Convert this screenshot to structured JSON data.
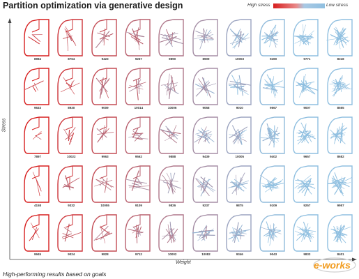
{
  "title": "Partition optimization via generative design",
  "legend": {
    "high_label": "High stress",
    "low_label": "Low stress",
    "high_color": "#d71e1e",
    "low_color": "#8fbfe0"
  },
  "axes": {
    "y_label": "Stress",
    "x_label": "Weight"
  },
  "caption": "High-performing results based on goals",
  "watermark": {
    "brand_text": "e-works",
    "brand_color": "#f29b1d"
  },
  "grid": {
    "rows": [
      [
        "8984",
        "8764",
        "9423",
        "9257",
        "9890",
        "8909",
        "10003",
        "9490",
        "9771",
        "8318"
      ],
      [
        "9633",
        "8930",
        "9009",
        "10014",
        "10006",
        "9058",
        "9010",
        "9567",
        "9007",
        "8555"
      ],
      [
        "7897",
        "10022",
        "9963",
        "9562",
        "9888",
        "9439",
        "10005",
        "9402",
        "9657",
        "8682"
      ],
      [
        "4158",
        "9332",
        "10055",
        "9109",
        "9826",
        "9237",
        "9875",
        "9109",
        "9257",
        "9957"
      ],
      [
        "9945",
        "9024",
        "9828",
        "9712",
        "10002",
        "10082",
        "9346",
        "9043",
        "9833",
        "8401"
      ]
    ]
  }
}
